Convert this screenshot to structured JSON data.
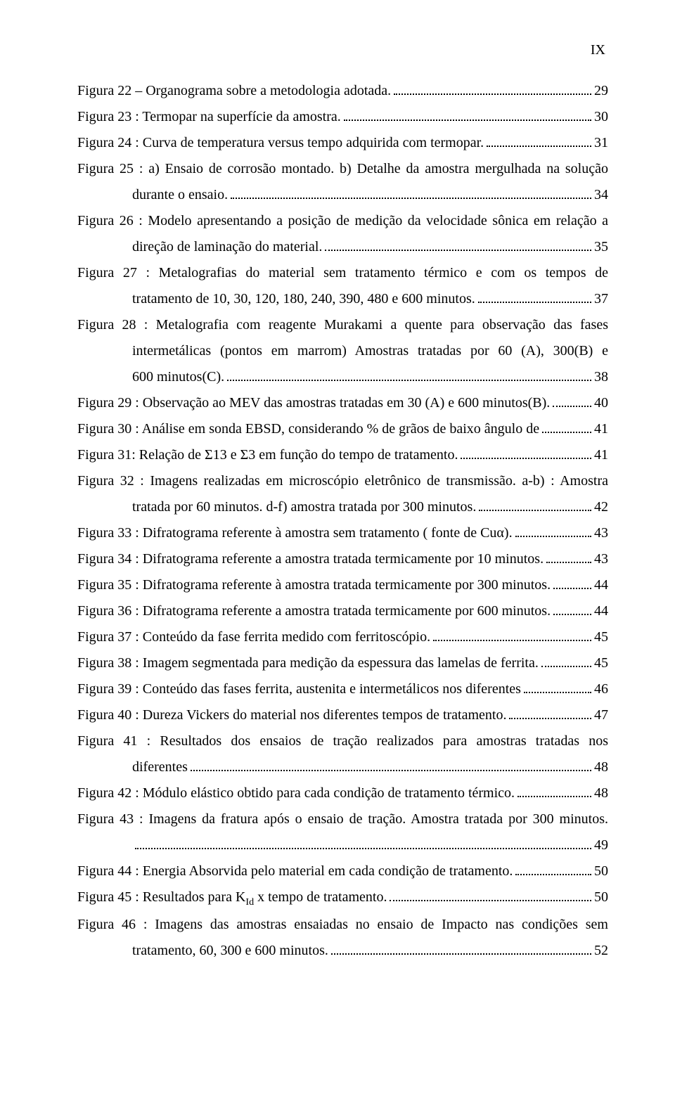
{
  "page_number": "IX",
  "entries": [
    {
      "lines": [
        {
          "text": "Figura 22 – Organograma sobre a metodologia adotada.",
          "page": "29"
        }
      ]
    },
    {
      "lines": [
        {
          "text": "Figura 23 : Termopar na superfície da amostra.",
          "page": "30"
        }
      ]
    },
    {
      "lines": [
        {
          "text": "Figura 24 : Curva de temperatura versus tempo adquirida com termopar.",
          "page": "31"
        }
      ]
    },
    {
      "lines": [
        {
          "text_full": "Figura 25 : a) Ensaio de corrosão montado. b) Detalhe da amostra mergulhada na solução"
        },
        {
          "text": "durante o ensaio.",
          "page": "34",
          "indent": true
        }
      ]
    },
    {
      "lines": [
        {
          "text_full": "Figura 26 : Modelo apresentando a posição de medição da velocidade sônica em relação a"
        },
        {
          "text": "direção de laminação do material.",
          "page": "35",
          "indent": true
        }
      ]
    },
    {
      "lines": [
        {
          "text_full": "Figura 27 : Metalografias do material sem tratamento térmico e com os tempos de"
        },
        {
          "text": "tratamento de 10, 30, 120, 180, 240, 390, 480 e 600 minutos.",
          "page": "37",
          "indent": true
        }
      ]
    },
    {
      "lines": [
        {
          "text_full": "Figura 28 : Metalografia com reagente Murakami a quente para observação das fases"
        },
        {
          "text_full": "intermetálicas (pontos em marrom) Amostras tratadas por 60 (A), 300(B) e",
          "indent": true
        },
        {
          "text": "600 minutos(C).",
          "page": "38",
          "indent": true
        }
      ]
    },
    {
      "lines": [
        {
          "text": "Figura 29 : Observação ao MEV das amostras tratadas em 30 (A) e 600 minutos(B).",
          "page": "40"
        }
      ]
    },
    {
      "lines": [
        {
          "text": "Figura 30 : Análise em sonda EBSD, considerando % de grãos de baixo ângulo de",
          "page": "41"
        }
      ]
    },
    {
      "lines": [
        {
          "text": "Figura 31: Relação de Σ13 e Σ3 em função do tempo de tratamento.",
          "page": "41"
        }
      ]
    },
    {
      "lines": [
        {
          "text_full": "Figura 32 : Imagens realizadas em microscópio eletrônico de transmissão. a-b) : Amostra"
        },
        {
          "text": "tratada por 60 minutos. d-f) amostra tratada por 300 minutos.",
          "page": "42",
          "indent": true
        }
      ]
    },
    {
      "lines": [
        {
          "text": "Figura 33 : Difratograma referente à amostra sem tratamento ( fonte de Cuα).",
          "page": "43"
        }
      ]
    },
    {
      "lines": [
        {
          "text": "Figura 34 : Difratograma referente a amostra tratada termicamente por 10 minutos.",
          "page": "43"
        }
      ]
    },
    {
      "lines": [
        {
          "text": "Figura 35 : Difratograma referente à amostra tratada termicamente por 300 minutos.",
          "page": "44"
        }
      ]
    },
    {
      "lines": [
        {
          "text": "Figura 36 : Difratograma referente a amostra tratada termicamente por 600 minutos.",
          "page": "44"
        }
      ]
    },
    {
      "lines": [
        {
          "text": "Figura 37 : Conteúdo da fase ferrita medido com ferritoscópio.",
          "page": "45"
        }
      ]
    },
    {
      "lines": [
        {
          "text": "Figura 38 : Imagem segmentada para medição da espessura das lamelas de ferrita.",
          "page": "45"
        }
      ]
    },
    {
      "lines": [
        {
          "text": "Figura 39 : Conteúdo das fases ferrita, austenita e intermetálicos nos diferentes",
          "page": "46"
        }
      ]
    },
    {
      "lines": [
        {
          "text": "Figura 40 : Dureza Vickers do material nos diferentes tempos de tratamento.",
          "page": "47"
        }
      ]
    },
    {
      "lines": [
        {
          "text_full": "Figura 41 : Resultados dos ensaios de tração realizados para amostras tratadas nos"
        },
        {
          "text": "diferentes",
          "page": "48",
          "indent": true
        }
      ]
    },
    {
      "lines": [
        {
          "text": "Figura 42 : Módulo elástico obtido para cada condição de tratamento térmico.",
          "page": "48"
        }
      ]
    },
    {
      "lines": [
        {
          "text_full": "Figura 43 : Imagens da fratura após o ensaio de tração. Amostra tratada por 300 minutos."
        },
        {
          "text": "",
          "page": "49",
          "indent": true
        }
      ]
    },
    {
      "lines": [
        {
          "text": "Figura 44 : Energia Absorvida pelo material em cada condição de tratamento.",
          "page": "50"
        }
      ]
    },
    {
      "lines": [
        {
          "text": "Figura 45 : Resultados para KId x tempo de tratamento.",
          "page": "50",
          "has_sub": true
        }
      ]
    },
    {
      "lines": [
        {
          "text_full": "Figura 46 : Imagens das amostras ensaiadas no ensaio de Impacto nas condições sem"
        },
        {
          "text": "tratamento, 60, 300 e 600 minutos.",
          "page": "52",
          "indent": true
        }
      ]
    }
  ]
}
